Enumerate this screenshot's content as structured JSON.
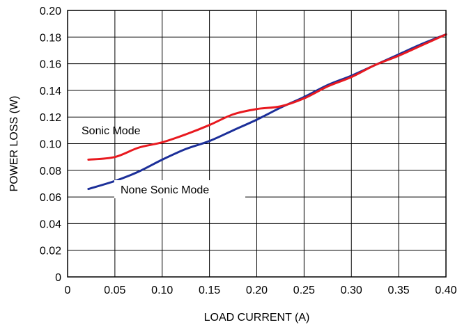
{
  "chart_data": {
    "type": "line",
    "xlabel": "LOAD CURRENT (A)",
    "ylabel": "POWER LOSS (W)",
    "xlim": [
      0,
      0.4
    ],
    "ylim": [
      0,
      0.2
    ],
    "grid": true,
    "x_ticks": [
      0,
      0.05,
      0.1,
      0.15,
      0.2,
      0.25,
      0.3,
      0.35,
      0.4
    ],
    "x_tick_labels": [
      "0",
      "0.05",
      "0.10",
      "0.15",
      "0.20",
      "0.25",
      "0.30",
      "0.35",
      "0.40"
    ],
    "y_ticks": [
      0,
      0.02,
      0.04,
      0.06,
      0.08,
      0.1,
      0.12,
      0.14,
      0.16,
      0.18,
      0.2
    ],
    "y_tick_labels": [
      "0",
      "0.02",
      "0.04",
      "0.06",
      "0.08",
      "0.10",
      "0.12",
      "0.14",
      "0.16",
      "0.18",
      "0.20"
    ],
    "series": [
      {
        "name": "Sonic Mode",
        "color": "#e8191f",
        "x": [
          0.022,
          0.05,
          0.075,
          0.1,
          0.125,
          0.15,
          0.175,
          0.2,
          0.225,
          0.25,
          0.275,
          0.3,
          0.325,
          0.35,
          0.375,
          0.4
        ],
        "y": [
          0.088,
          0.09,
          0.097,
          0.101,
          0.107,
          0.114,
          0.122,
          0.126,
          0.128,
          0.134,
          0.143,
          0.15,
          0.159,
          0.166,
          0.174,
          0.182
        ]
      },
      {
        "name": "None Sonic Mode",
        "color": "#1c2f99",
        "x": [
          0.022,
          0.05,
          0.075,
          0.1,
          0.125,
          0.15,
          0.175,
          0.2,
          0.225,
          0.25,
          0.275,
          0.3,
          0.325,
          0.35,
          0.375,
          0.4
        ],
        "y": [
          0.066,
          0.072,
          0.079,
          0.088,
          0.096,
          0.102,
          0.11,
          0.118,
          0.127,
          0.135,
          0.144,
          0.151,
          0.159,
          0.167,
          0.175,
          0.182
        ]
      }
    ],
    "annotations": [
      {
        "text": "Sonic Mode",
        "series": 0
      },
      {
        "text": "None Sonic Mode",
        "series": 1
      }
    ]
  }
}
